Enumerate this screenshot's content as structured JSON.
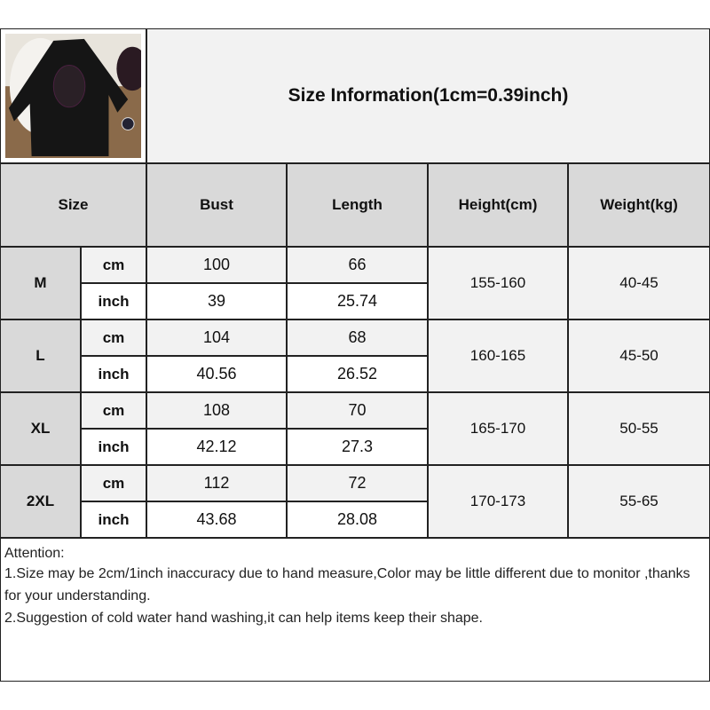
{
  "title": "Size Information(1cm=0.39inch)",
  "headers": {
    "size": "Size",
    "bust": "Bust",
    "length": "Length",
    "height": "Height(cm)",
    "weight": "Weight(kg)"
  },
  "rows": [
    {
      "size": "M",
      "cm": {
        "unit": "cm",
        "bust": "100",
        "length": "66"
      },
      "inch": {
        "unit": "inch",
        "bust": "39",
        "length": "25.74"
      },
      "height": "155-160",
      "weight": "40-45"
    },
    {
      "size": "L",
      "cm": {
        "unit": "cm",
        "bust": "104",
        "length": "68"
      },
      "inch": {
        "unit": "inch",
        "bust": "40.56",
        "length": "26.52"
      },
      "height": "160-165",
      "weight": "45-50"
    },
    {
      "size": "XL",
      "cm": {
        "unit": "cm",
        "bust": "108",
        "length": "70"
      },
      "inch": {
        "unit": "inch",
        "bust": "42.12",
        "length": "27.3"
      },
      "height": "165-170",
      "weight": "50-55"
    },
    {
      "size": "2XL",
      "cm": {
        "unit": "cm",
        "bust": "112",
        "length": "72"
      },
      "inch": {
        "unit": "inch",
        "bust": "43.68",
        "length": "28.08"
      },
      "height": "170-173",
      "weight": "55-65"
    }
  ],
  "notes": {
    "heading": "Attention:",
    "line1": "1.Size may be 2cm/1inch inaccuracy due to hand measure,Color may be little different due to monitor ,thanks for your understanding.",
    "line2": "2.Suggestion of cold water hand washing,it can help items keep their shape."
  }
}
